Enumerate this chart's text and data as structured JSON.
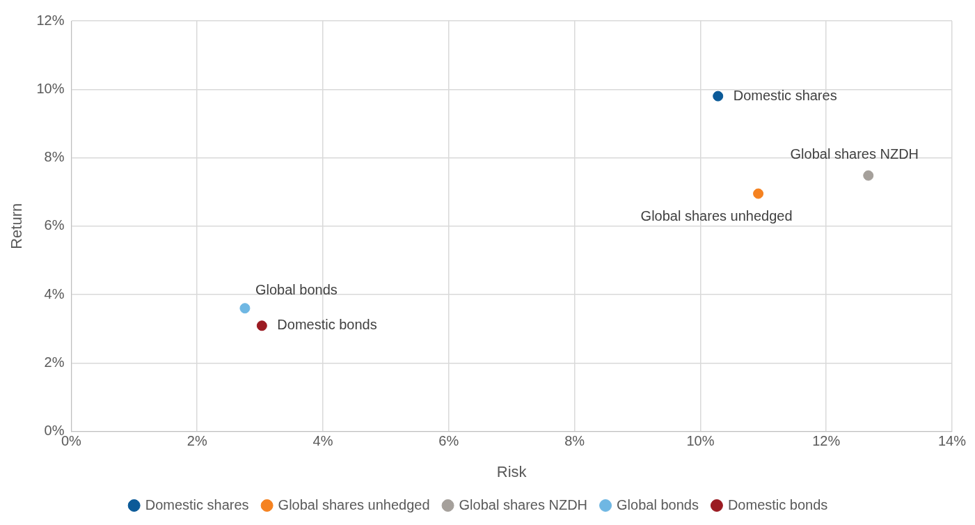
{
  "chart_data": {
    "type": "scatter",
    "xlabel": "Risk",
    "ylabel": "Return",
    "series": [
      {
        "name": "Domestic shares",
        "color": "#0b5a98",
        "x": [
          10.28
        ],
        "values": [
          9.8
        ]
      },
      {
        "name": "Global shares unhedged",
        "color": "#f58220",
        "x": [
          10.92
        ],
        "values": [
          6.95
        ]
      },
      {
        "name": "Global shares NZDH",
        "color": "#a5a09b",
        "x": [
          12.67
        ],
        "values": [
          7.48
        ]
      },
      {
        "name": "Global bonds",
        "color": "#6fb7e3",
        "x": [
          2.76
        ],
        "values": [
          3.6
        ]
      },
      {
        "name": "Domestic bonds",
        "color": "#9b1b22",
        "x": [
          3.03
        ],
        "values": [
          3.09
        ]
      }
    ],
    "xlim": [
      0,
      14
    ],
    "xticks": [
      {
        "value": 0,
        "label": "0%"
      },
      {
        "value": 2,
        "label": "2%"
      },
      {
        "value": 4,
        "label": "4%"
      },
      {
        "value": 6,
        "label": "6%"
      },
      {
        "value": 8,
        "label": "8%"
      },
      {
        "value": 10,
        "label": "10%"
      },
      {
        "value": 12,
        "label": "12%"
      },
      {
        "value": 14,
        "label": "14%"
      }
    ],
    "ylim": [
      0,
      12
    ],
    "yticks": [
      {
        "value": 0,
        "label": "0%"
      },
      {
        "value": 2,
        "label": "2%"
      },
      {
        "value": 4,
        "label": "4%"
      },
      {
        "value": 6,
        "label": "6%"
      },
      {
        "value": 8,
        "label": "8%"
      },
      {
        "value": 10,
        "label": "10%"
      },
      {
        "value": 12,
        "label": "12%"
      }
    ],
    "grid": true,
    "legend": "bottom",
    "marker": "circle"
  }
}
